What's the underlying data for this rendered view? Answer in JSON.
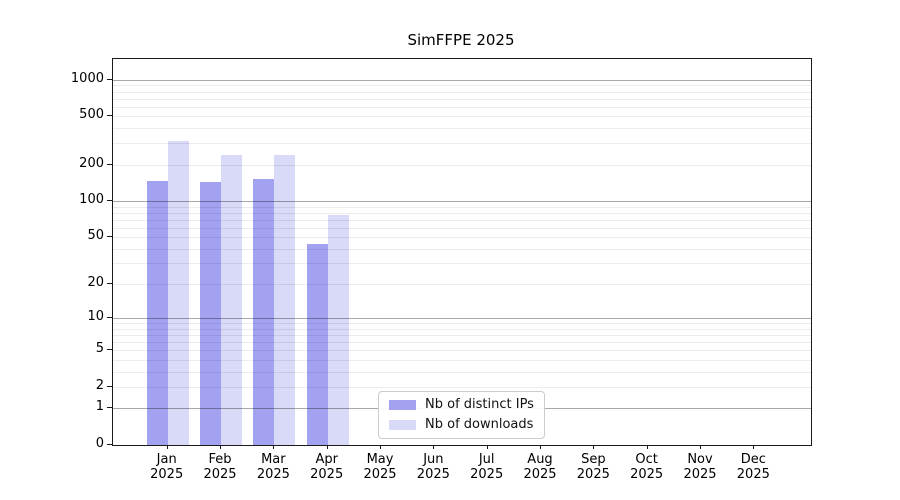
{
  "title": "SimFFPE 2025",
  "chart_data": {
    "type": "bar",
    "title": "SimFFPE 2025",
    "y_scale": "log10(1+x)",
    "y_ticks": [
      0,
      1,
      2,
      5,
      10,
      20,
      50,
      100,
      200,
      500,
      1000
    ],
    "ylim": [
      0,
      1000
    ],
    "grid": "horizontal, drawn over bars; major lines at powers of 10, minor at 2-9 multiples",
    "legend_position": "lower center",
    "categories": [
      {
        "label": "Jan",
        "year": "2025"
      },
      {
        "label": "Feb",
        "year": "2025"
      },
      {
        "label": "Mar",
        "year": "2025"
      },
      {
        "label": "Apr",
        "year": "2025"
      },
      {
        "label": "May",
        "year": "2025"
      },
      {
        "label": "Jun",
        "year": "2025"
      },
      {
        "label": "Jul",
        "year": "2025"
      },
      {
        "label": "Aug",
        "year": "2025"
      },
      {
        "label": "Sep",
        "year": "2025"
      },
      {
        "label": "Oct",
        "year": "2025"
      },
      {
        "label": "Nov",
        "year": "2025"
      },
      {
        "label": "Dec",
        "year": "2025"
      }
    ],
    "series": [
      {
        "name": "Nb of distinct IPs",
        "color": "#a2a2f0",
        "values": [
          146,
          143,
          151,
          44,
          null,
          null,
          null,
          null,
          null,
          null,
          null,
          null
        ]
      },
      {
        "name": "Nb of downloads",
        "color": "#d9d9f8",
        "values": [
          311,
          241,
          242,
          76,
          null,
          null,
          null,
          null,
          null,
          null,
          null,
          null
        ]
      }
    ]
  }
}
